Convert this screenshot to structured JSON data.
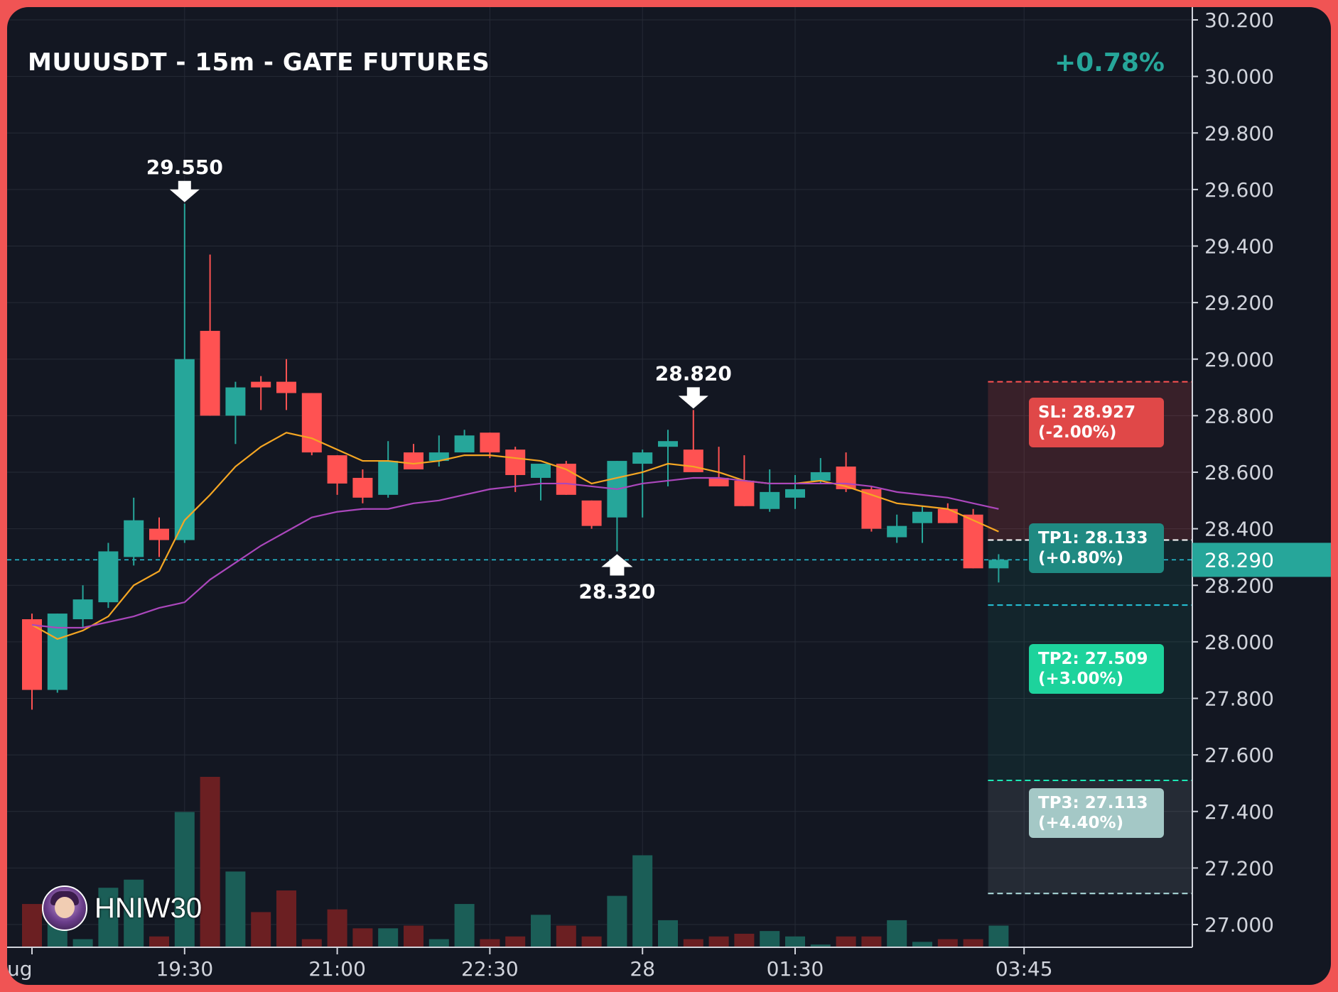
{
  "header": {
    "title": "MUUUSDT - 15m - GATE FUTURES",
    "change": "+0.78%"
  },
  "brand": {
    "name": "HNIW30",
    "avatar_icon": "avatar-icon"
  },
  "colors": {
    "up": "#26a69a",
    "down": "#ff5252",
    "ema_fast": "#f5a623",
    "ema_slow": "#ab47bc",
    "background": "#131722",
    "grid": "#262b36"
  },
  "chart_data": {
    "type": "candlestick",
    "title": "MUUUSDT - 15m - GATE FUTURES",
    "ylim": [
      26.92,
      30.22
    ],
    "y_ticks": [
      "30.200",
      "30.000",
      "29.800",
      "29.600",
      "29.400",
      "29.200",
      "29.000",
      "28.800",
      "28.600",
      "28.400",
      "28.200",
      "28.000",
      "27.800",
      "27.600",
      "27.400",
      "27.200",
      "27.000"
    ],
    "x_ticks": [
      {
        "label": "ug",
        "index": 0
      },
      {
        "label": "19:30",
        "index": 6
      },
      {
        "label": "21:00",
        "index": 12
      },
      {
        "label": "22:30",
        "index": 18
      },
      {
        "label": "28",
        "index": 24
      },
      {
        "label": "01:30",
        "index": 30
      },
      {
        "label": "03:45",
        "index": 39
      }
    ],
    "candles": [
      {
        "o": 28.08,
        "h": 28.1,
        "l": 27.76,
        "c": 27.83
      },
      {
        "o": 27.83,
        "h": 28.1,
        "l": 27.82,
        "c": 28.1
      },
      {
        "o": 28.08,
        "h": 28.2,
        "l": 28.05,
        "c": 28.15
      },
      {
        "o": 28.14,
        "h": 28.35,
        "l": 28.12,
        "c": 28.32
      },
      {
        "o": 28.3,
        "h": 28.51,
        "l": 28.27,
        "c": 28.43
      },
      {
        "o": 28.4,
        "h": 28.44,
        "l": 28.3,
        "c": 28.36
      },
      {
        "o": 28.36,
        "h": 29.55,
        "l": 28.35,
        "c": 29.0
      },
      {
        "o": 29.1,
        "h": 29.37,
        "l": 28.8,
        "c": 28.8
      },
      {
        "o": 28.8,
        "h": 28.92,
        "l": 28.7,
        "c": 28.9
      },
      {
        "o": 28.92,
        "h": 28.94,
        "l": 28.82,
        "c": 28.9
      },
      {
        "o": 28.92,
        "h": 29.0,
        "l": 28.82,
        "c": 28.88
      },
      {
        "o": 28.88,
        "h": 28.88,
        "l": 28.66,
        "c": 28.67
      },
      {
        "o": 28.66,
        "h": 28.66,
        "l": 28.52,
        "c": 28.56
      },
      {
        "o": 28.58,
        "h": 28.61,
        "l": 28.49,
        "c": 28.51
      },
      {
        "o": 28.52,
        "h": 28.71,
        "l": 28.51,
        "c": 28.64
      },
      {
        "o": 28.67,
        "h": 28.7,
        "l": 28.61,
        "c": 28.61
      },
      {
        "o": 28.64,
        "h": 28.73,
        "l": 28.62,
        "c": 28.67
      },
      {
        "o": 28.67,
        "h": 28.75,
        "l": 28.67,
        "c": 28.73
      },
      {
        "o": 28.74,
        "h": 28.74,
        "l": 28.65,
        "c": 28.67
      },
      {
        "o": 28.68,
        "h": 28.69,
        "l": 28.53,
        "c": 28.59
      },
      {
        "o": 28.58,
        "h": 28.63,
        "l": 28.5,
        "c": 28.63
      },
      {
        "o": 28.63,
        "h": 28.64,
        "l": 28.52,
        "c": 28.52
      },
      {
        "o": 28.5,
        "h": 28.5,
        "l": 28.4,
        "c": 28.41
      },
      {
        "o": 28.44,
        "h": 28.64,
        "l": 28.32,
        "c": 28.64
      },
      {
        "o": 28.63,
        "h": 28.68,
        "l": 28.44,
        "c": 28.67
      },
      {
        "o": 28.69,
        "h": 28.75,
        "l": 28.55,
        "c": 28.71
      },
      {
        "o": 28.68,
        "h": 28.82,
        "l": 28.6,
        "c": 28.6
      },
      {
        "o": 28.58,
        "h": 28.69,
        "l": 28.55,
        "c": 28.55
      },
      {
        "o": 28.57,
        "h": 28.66,
        "l": 28.48,
        "c": 28.48
      },
      {
        "o": 28.47,
        "h": 28.61,
        "l": 28.46,
        "c": 28.53
      },
      {
        "o": 28.51,
        "h": 28.59,
        "l": 28.47,
        "c": 28.54
      },
      {
        "o": 28.57,
        "h": 28.65,
        "l": 28.56,
        "c": 28.6
      },
      {
        "o": 28.62,
        "h": 28.67,
        "l": 28.53,
        "c": 28.54
      },
      {
        "o": 28.54,
        "h": 28.55,
        "l": 28.39,
        "c": 28.4
      },
      {
        "o": 28.37,
        "h": 28.45,
        "l": 28.35,
        "c": 28.41
      },
      {
        "o": 28.42,
        "h": 28.48,
        "l": 28.35,
        "c": 28.46
      },
      {
        "o": 28.47,
        "h": 28.49,
        "l": 28.42,
        "c": 28.42
      },
      {
        "o": 28.45,
        "h": 28.47,
        "l": 28.26,
        "c": 28.26
      },
      {
        "o": 28.26,
        "h": 28.31,
        "l": 28.21,
        "c": 28.29
      }
    ],
    "volumes": [
      16,
      10,
      3,
      22,
      25,
      4,
      50,
      63,
      28,
      13,
      21,
      3,
      14,
      7,
      7,
      8,
      3,
      16,
      3,
      4,
      12,
      8,
      4,
      19,
      34,
      10,
      3,
      4,
      5,
      6,
      4,
      1,
      4,
      4,
      10,
      2,
      3,
      3,
      8
    ],
    "ema_fast": [
      28.06,
      28.01,
      28.04,
      28.09,
      28.2,
      28.25,
      28.43,
      28.52,
      28.62,
      28.69,
      28.74,
      28.72,
      28.68,
      28.64,
      28.64,
      28.63,
      28.64,
      28.66,
      28.66,
      28.65,
      28.64,
      28.61,
      28.56,
      28.58,
      28.6,
      28.63,
      28.62,
      28.6,
      28.57,
      28.56,
      28.56,
      28.57,
      28.55,
      28.52,
      28.49,
      28.48,
      28.47,
      28.43,
      28.39
    ],
    "ema_slow": [
      28.06,
      28.05,
      28.05,
      28.07,
      28.09,
      28.12,
      28.14,
      28.22,
      28.28,
      28.34,
      28.39,
      28.44,
      28.46,
      28.47,
      28.47,
      28.49,
      28.5,
      28.52,
      28.54,
      28.55,
      28.56,
      28.56,
      28.55,
      28.54,
      28.56,
      28.57,
      28.58,
      28.58,
      28.57,
      28.56,
      28.56,
      28.56,
      28.56,
      28.55,
      28.53,
      28.52,
      28.51,
      28.49,
      28.47
    ],
    "annotations": [
      {
        "label": "29.550",
        "index": 6,
        "price": 29.55,
        "direction": "down"
      },
      {
        "label": "28.820",
        "index": 26,
        "price": 28.82,
        "direction": "down"
      },
      {
        "label": "28.320",
        "index": 23,
        "price": 28.32,
        "direction": "up"
      }
    ],
    "current_price": {
      "label": "28.290",
      "value": 28.29
    },
    "levels": {
      "entry": 28.36,
      "sl": {
        "value": 28.92,
        "label": "SL: 28.927",
        "pct": "(-2.00%)"
      },
      "tp1": {
        "value": 28.13,
        "label": "TP1: 28.133",
        "pct": "(+0.80%)"
      },
      "tp2": {
        "value": 27.51,
        "label": "TP2: 27.509",
        "pct": "(+3.00%)"
      },
      "tp3": {
        "value": 27.11,
        "label": "TP3: 27.113",
        "pct": "(+4.40%)"
      }
    }
  }
}
